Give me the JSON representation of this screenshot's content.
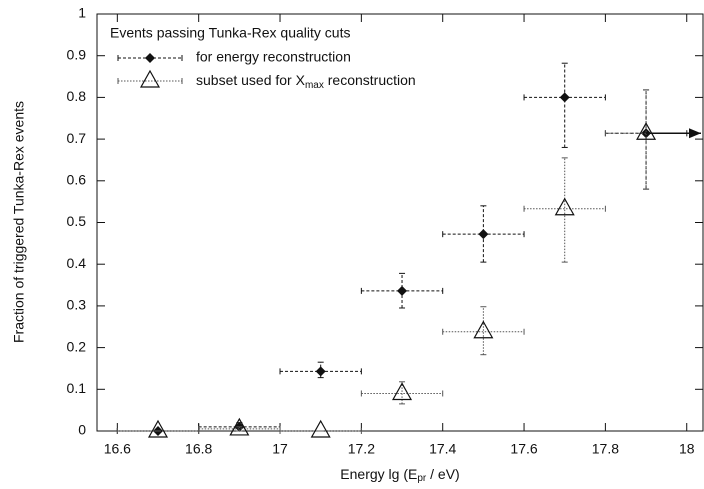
{
  "chart_data": {
    "type": "errorbar",
    "xlabel": {
      "text": "Energy   lg (E",
      "sub": "pr",
      "tail": " / eV)"
    },
    "ylabel": "Fraction of triggered Tunka-Rex events",
    "legend_title": "Events passing Tunka-Rex quality cuts",
    "xlim": [
      16.55,
      18.04
    ],
    "ylim": [
      0,
      1
    ],
    "xticks": [
      16.6,
      16.8,
      17,
      17.2,
      17.4,
      17.6,
      17.8,
      18
    ],
    "yticks": [
      0,
      0.1,
      0.2,
      0.3,
      0.4,
      0.5,
      0.6,
      0.7,
      0.8,
      0.9,
      1
    ],
    "series": [
      {
        "name": "for energy reconstruction",
        "marker": "diamond",
        "color": "#111111",
        "x": [
          16.7,
          16.9,
          17.1,
          17.3,
          17.5,
          17.7,
          17.9
        ],
        "values": [
          0,
          0.01,
          0.143,
          0.336,
          0.472,
          0.8,
          0.714
        ],
        "err_low": [
          0,
          0,
          0.128,
          0.295,
          0.405,
          0.68,
          0.58
        ],
        "err_high": [
          0,
          0.02,
          0.165,
          0.378,
          0.54,
          0.882,
          0.818
        ],
        "xerr": [
          0.1,
          0.1,
          0.1,
          0.1,
          0.1,
          0.1,
          0.1
        ]
      },
      {
        "name": "subset used for X",
        "name_sub": "max",
        "name_tail": " reconstruction",
        "marker": "triangle",
        "color": "#555555",
        "x": [
          16.7,
          16.9,
          17.1,
          17.3,
          17.5,
          17.7,
          17.9
        ],
        "values": [
          0,
          0.005,
          0,
          0.09,
          0.238,
          0.533,
          0.714
        ],
        "err_low": [
          0,
          0,
          0,
          0.065,
          0.183,
          0.405,
          0.58
        ],
        "err_high": [
          0,
          0.01,
          0,
          0.118,
          0.298,
          0.655,
          0.818
        ],
        "xerr": [
          0.1,
          0.1,
          0.1,
          0.1,
          0.1,
          0.1,
          0.1
        ]
      }
    ]
  }
}
